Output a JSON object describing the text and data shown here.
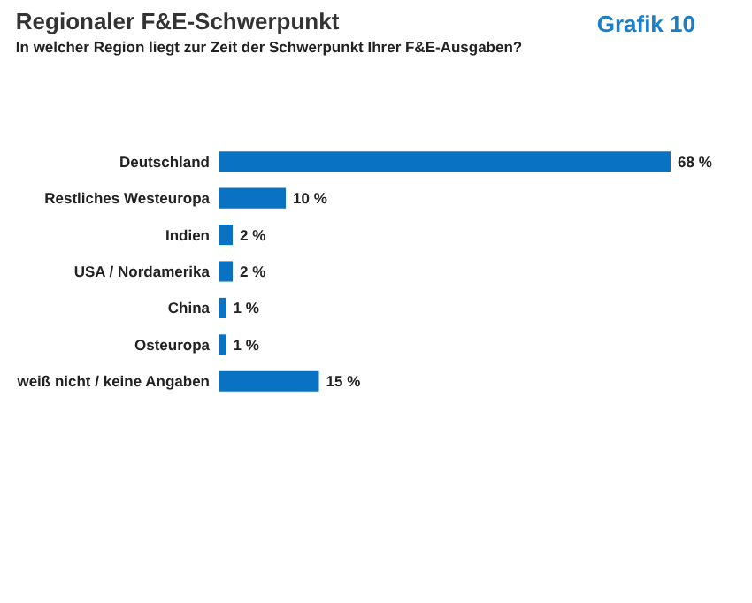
{
  "chart_data": {
    "type": "bar",
    "orientation": "horizontal",
    "title": "Regionaler F&E-Schwerpunkt",
    "subtitle": "In welcher Region liegt zur Zeit der Schwerpunkt Ihrer F&E-Ausgaben?",
    "annotations": [
      "Grafik 10"
    ],
    "categories": [
      "Deutschland",
      "Restliches Westeuropa",
      "Indien",
      "USA / Nordamerika",
      "China",
      "Osteuropa",
      "weiß nicht / keine Angaben"
    ],
    "values": [
      68,
      10,
      2,
      2,
      1,
      1,
      15
    ],
    "value_labels": [
      "68 %",
      "10 %",
      "2 %",
      "2 %",
      "1 %",
      "1 %",
      "15 %"
    ],
    "color": "#0a72c2"
  }
}
